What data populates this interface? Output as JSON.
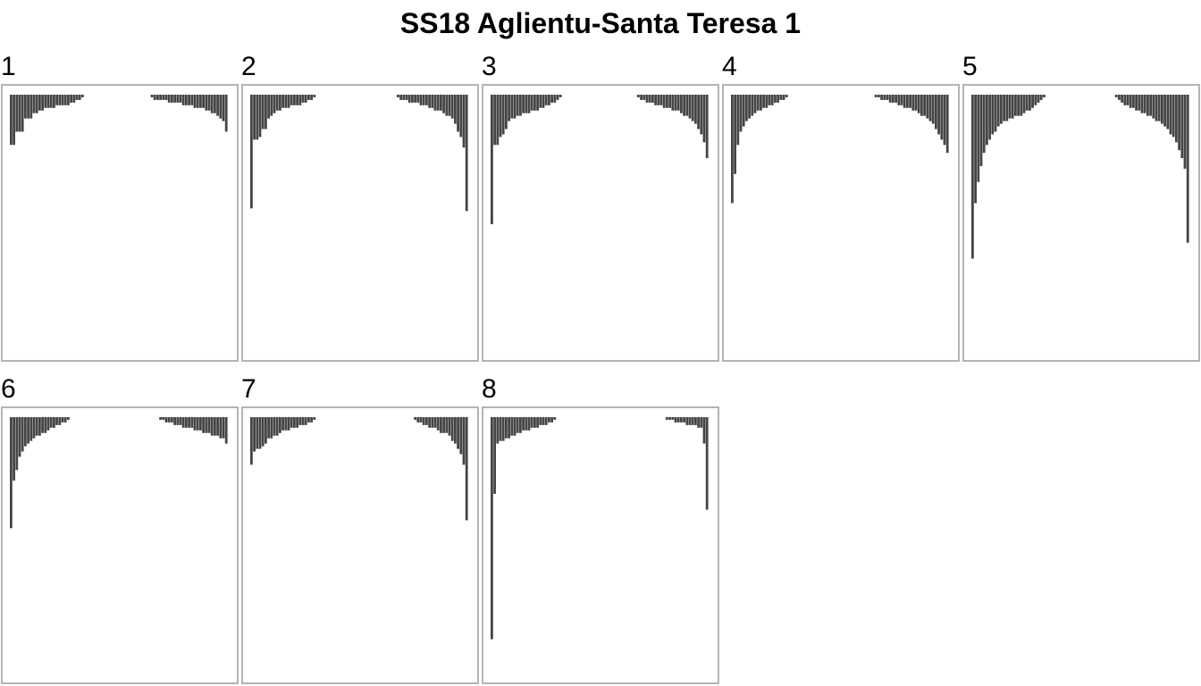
{
  "chart_data": {
    "type": "bar",
    "title": "SS18 Aglientu-Santa Teresa 1",
    "bar_color": "#454545",
    "frame_color": "#b4b4b4",
    "panels": [
      {
        "label": "1",
        "edge": [
          0.19,
          0.19,
          0.14,
          0.14,
          0.14,
          0.09,
          0.09,
          0.09,
          0.07,
          0.07,
          0.06,
          0.06,
          0.05,
          0.05,
          0.05,
          0.05,
          0.04,
          0.04,
          0.04,
          0.04,
          0.04,
          0.03,
          0.03,
          0.02,
          0.02,
          0.01
        ],
        "right": [
          0.01,
          0.02,
          0.02,
          0.02,
          0.02,
          0.02,
          0.03,
          0.03,
          0.03,
          0.03,
          0.03,
          0.04,
          0.04,
          0.04,
          0.04,
          0.05,
          0.05,
          0.05,
          0.05,
          0.06,
          0.06,
          0.07,
          0.07,
          0.08,
          0.09,
          0.1,
          0.14
        ]
      },
      {
        "label": "2",
        "edge": [
          0.43,
          0.17,
          0.17,
          0.16,
          0.13,
          0.13,
          0.09,
          0.08,
          0.07,
          0.06,
          0.06,
          0.05,
          0.05,
          0.05,
          0.04,
          0.04,
          0.04,
          0.04,
          0.03,
          0.03,
          0.02,
          0.02,
          0.01
        ],
        "right": [
          0.01,
          0.02,
          0.02,
          0.02,
          0.03,
          0.03,
          0.03,
          0.03,
          0.04,
          0.04,
          0.04,
          0.05,
          0.05,
          0.06,
          0.06,
          0.06,
          0.07,
          0.08,
          0.08,
          0.09,
          0.11,
          0.14,
          0.16,
          0.2,
          0.44
        ]
      },
      {
        "label": "3",
        "edge": [
          0.49,
          0.19,
          0.19,
          0.16,
          0.15,
          0.13,
          0.1,
          0.09,
          0.09,
          0.08,
          0.08,
          0.07,
          0.07,
          0.07,
          0.06,
          0.06,
          0.06,
          0.05,
          0.05,
          0.04,
          0.04,
          0.03,
          0.03,
          0.02,
          0.01
        ],
        "right": [
          0.01,
          0.02,
          0.02,
          0.03,
          0.03,
          0.03,
          0.04,
          0.04,
          0.04,
          0.05,
          0.05,
          0.05,
          0.06,
          0.06,
          0.06,
          0.07,
          0.08,
          0.08,
          0.09,
          0.1,
          0.11,
          0.13,
          0.15,
          0.18,
          0.24
        ]
      },
      {
        "label": "4",
        "edge": [
          0.41,
          0.3,
          0.19,
          0.14,
          0.12,
          0.1,
          0.09,
          0.08,
          0.07,
          0.06,
          0.06,
          0.05,
          0.05,
          0.04,
          0.04,
          0.03,
          0.03,
          0.02,
          0.02,
          0.01
        ],
        "right": [
          0.01,
          0.01,
          0.02,
          0.02,
          0.02,
          0.03,
          0.03,
          0.03,
          0.04,
          0.04,
          0.05,
          0.05,
          0.05,
          0.06,
          0.06,
          0.07,
          0.08,
          0.08,
          0.09,
          0.1,
          0.11,
          0.13,
          0.15,
          0.17,
          0.19,
          0.22
        ]
      },
      {
        "label": "5",
        "edge": [
          0.62,
          0.41,
          0.33,
          0.27,
          0.22,
          0.19,
          0.17,
          0.15,
          0.14,
          0.12,
          0.11,
          0.1,
          0.1,
          0.09,
          0.09,
          0.08,
          0.08,
          0.08,
          0.07,
          0.06,
          0.06,
          0.05,
          0.04,
          0.03,
          0.02,
          0.01
        ],
        "right": [
          0.01,
          0.02,
          0.03,
          0.04,
          0.04,
          0.05,
          0.05,
          0.06,
          0.06,
          0.07,
          0.07,
          0.08,
          0.08,
          0.09,
          0.1,
          0.1,
          0.11,
          0.12,
          0.13,
          0.15,
          0.16,
          0.18,
          0.21,
          0.24,
          0.28,
          0.56
        ]
      },
      {
        "label": "6",
        "edge": [
          0.42,
          0.24,
          0.2,
          0.15,
          0.13,
          0.11,
          0.1,
          0.09,
          0.08,
          0.07,
          0.07,
          0.06,
          0.06,
          0.05,
          0.04,
          0.04,
          0.03,
          0.03,
          0.02,
          0.02,
          0.01
        ],
        "right": [
          0.01,
          0.01,
          0.02,
          0.02,
          0.02,
          0.03,
          0.03,
          0.03,
          0.04,
          0.04,
          0.04,
          0.04,
          0.05,
          0.05,
          0.05,
          0.06,
          0.06,
          0.06,
          0.07,
          0.07,
          0.07,
          0.08,
          0.08,
          0.1
        ]
      },
      {
        "label": "7",
        "edge": [
          0.18,
          0.13,
          0.12,
          0.12,
          0.11,
          0.1,
          0.08,
          0.08,
          0.07,
          0.07,
          0.06,
          0.05,
          0.05,
          0.05,
          0.04,
          0.04,
          0.04,
          0.03,
          0.03,
          0.03,
          0.02,
          0.02,
          0.01
        ],
        "right": [
          0.01,
          0.02,
          0.02,
          0.03,
          0.03,
          0.04,
          0.04,
          0.04,
          0.05,
          0.06,
          0.06,
          0.06,
          0.07,
          0.09,
          0.1,
          0.12,
          0.14,
          0.18,
          0.39
        ]
      },
      {
        "label": "8",
        "edge": [
          0.84,
          0.29,
          0.1,
          0.09,
          0.09,
          0.08,
          0.08,
          0.07,
          0.07,
          0.06,
          0.06,
          0.05,
          0.05,
          0.05,
          0.04,
          0.04,
          0.04,
          0.03,
          0.03,
          0.03,
          0.02,
          0.02,
          0.01
        ],
        "right": [
          0.01,
          0.01,
          0.01,
          0.02,
          0.02,
          0.02,
          0.02,
          0.03,
          0.03,
          0.03,
          0.03,
          0.04,
          0.04,
          0.1,
          0.35
        ]
      }
    ]
  }
}
